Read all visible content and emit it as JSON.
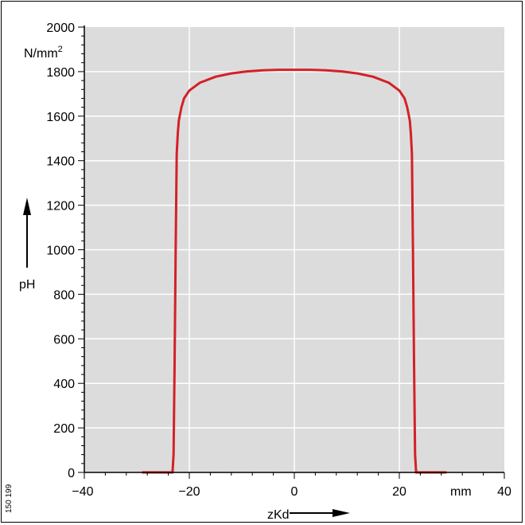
{
  "figure_id": "150 199",
  "colors": {
    "plot_bg": "#dcdcdc",
    "grid": "#ffffff",
    "curve": "#d42027",
    "axis": "#000000"
  },
  "chart_data": {
    "type": "line",
    "title": "",
    "xlabel": "zKd",
    "ylabel": "pH",
    "x_unit": "mm",
    "y_unit": "N/mm²",
    "xlim": [
      -40,
      40
    ],
    "ylim": [
      0,
      2000
    ],
    "x_ticks": [
      -40,
      -20,
      0,
      20,
      40
    ],
    "x_tick_labels": [
      "−40",
      "−20",
      "0",
      "20",
      "40"
    ],
    "y_ticks": [
      0,
      200,
      400,
      600,
      800,
      1000,
      1200,
      1400,
      1600,
      1800,
      2000
    ],
    "y_tick_labels": [
      "0",
      "200",
      "400",
      "600",
      "800",
      "1000",
      "1200",
      "1400",
      "1600",
      "1800",
      "2000"
    ],
    "grid": true,
    "series": [
      {
        "x": [
          -29,
          -24,
          -23.2,
          -23.0,
          -22.8,
          -22.6,
          -22.4,
          -22.2,
          -22.0,
          -21.5,
          -21.0,
          -20.0,
          -18.0,
          -15.0,
          -12.0,
          -9.0,
          -6.0,
          -3.0,
          0,
          3.0,
          6.0,
          9.0,
          12.0,
          15.0,
          18.0,
          20.0,
          21.0,
          21.5,
          22.0,
          22.2,
          22.4,
          22.6,
          22.8,
          23.0,
          23.2,
          24,
          29
        ],
        "y": [
          0,
          0,
          0,
          80,
          500,
          1000,
          1430,
          1520,
          1580,
          1640,
          1680,
          1715,
          1750,
          1777,
          1792,
          1801,
          1806,
          1808,
          1808,
          1808,
          1806,
          1801,
          1792,
          1777,
          1750,
          1715,
          1680,
          1640,
          1580,
          1520,
          1430,
          1000,
          500,
          80,
          0,
          0,
          0
        ]
      }
    ]
  }
}
